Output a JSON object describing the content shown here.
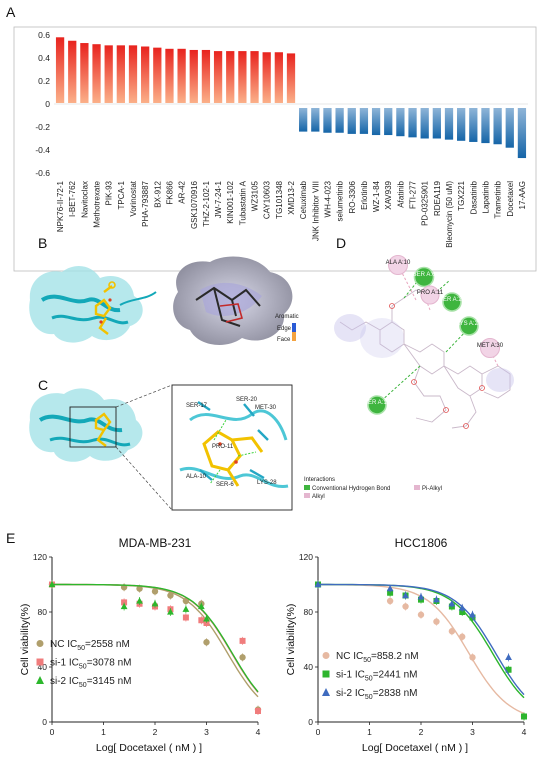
{
  "panels": {
    "A": "A",
    "B": "B",
    "C": "C",
    "D": "D",
    "E": "E"
  },
  "panel_b": {
    "legend_title": "Aromatic",
    "edge_label": "Edge",
    "face_label": "Face"
  },
  "panel_c": {
    "residues": [
      "SER-17",
      "SER-20",
      "MET-30",
      "PRO-11",
      "ALA-10",
      "SER-6",
      "LYS-28"
    ]
  },
  "panel_d": {
    "residues": [
      "ALA A:10",
      "SER A:6",
      "PRO A:11",
      "SER A:20",
      "LYS A:28",
      "MET A:30",
      "SER A:17"
    ],
    "legend_title": "Interactions",
    "legend_items": [
      "Conventional Hydrogen Bond",
      "Pi-Alkyl",
      "Alkyl"
    ]
  },
  "chart_data": [
    {
      "type": "bar",
      "panel": "A",
      "categories": [
        "NPK76-II-72-1",
        "I-BET-762",
        "Navitoclax",
        "Methotrexate",
        "PIK-93",
        "TPCA-1",
        "Vorinostat",
        "PHA-793887",
        "BX-912",
        "FK866",
        "AR-42",
        "GSK1070916",
        "THZ-2-102-1",
        "JW-7-24-1",
        "KIN001-102",
        "Tubastatin A",
        "WZ3105",
        "CAY10603",
        "TG101348",
        "XMD13-2",
        "Cetuximab",
        "JNK Inhibitor VIII",
        "WH-4-023",
        "selumetinib",
        "RO-3306",
        "Erlotinib",
        "WZ-1-84",
        "XAV939",
        "Afatinib",
        "FTI-277",
        "PD-0325901",
        "RDEA119",
        "Bleomycin (50 uM)",
        "TGX221",
        "Dasatinib",
        "Lapatinib",
        "Trametinib",
        "Docetaxel",
        "17-AAG"
      ],
      "values": [
        0.58,
        0.55,
        0.53,
        0.52,
        0.51,
        0.51,
        0.51,
        0.5,
        0.49,
        0.48,
        0.48,
        0.47,
        0.47,
        0.46,
        0.46,
        0.46,
        0.46,
        0.45,
        0.45,
        0.44,
        -0.24,
        -0.24,
        -0.25,
        -0.25,
        -0.26,
        -0.26,
        -0.27,
        -0.27,
        -0.28,
        -0.29,
        -0.3,
        -0.3,
        -0.31,
        -0.32,
        -0.33,
        -0.34,
        -0.35,
        -0.38,
        -0.47
      ],
      "ylim": [
        -0.6,
        0.6
      ],
      "yticks": [
        "0.6",
        "0.4",
        "0.2",
        "0",
        "-0.2",
        "-0.4",
        "-0.6"
      ],
      "colors": {
        "positive_top": "#e8231e",
        "positive_bottom": "#fbb089",
        "negative_top": "#8fb5d8",
        "negative_bottom": "#1565a8"
      }
    },
    {
      "type": "scatter",
      "panel": "E-left",
      "title": "MDA-MB-231",
      "xlabel": "Log[ Docetaxel ( nM ) ]",
      "ylabel": "Cell viability(%)",
      "xlim": [
        0,
        4
      ],
      "ylim": [
        0,
        120
      ],
      "xticks": [
        "0",
        "1",
        "2",
        "3",
        "4"
      ],
      "yticks": [
        "0",
        "40",
        "80",
        "120"
      ],
      "series": [
        {
          "name": "NC IC50=2558 nM",
          "label_prefix": "NC  IC",
          "sub": "50",
          "label_suffix": "=2558 nM",
          "color": "#b09f6c",
          "marker": "circle",
          "x": [
            0,
            1.4,
            1.7,
            2.0,
            2.3,
            2.6,
            2.9,
            3.0,
            3.7,
            4.0
          ],
          "y": [
            100,
            98,
            97,
            95,
            92,
            88,
            86,
            58,
            47,
            9
          ],
          "curve_ic50_log": 3.41
        },
        {
          "name": "si-1 IC50=3078 nM",
          "label_prefix": "si-1  IC",
          "sub": "50",
          "label_suffix": "=3078 nM",
          "color": "#f07c7c",
          "marker": "square",
          "x": [
            0,
            1.4,
            1.7,
            2.0,
            2.3,
            2.6,
            2.9,
            3.0,
            3.7,
            4.0
          ],
          "y": [
            100,
            87,
            86,
            84,
            82,
            76,
            74,
            72,
            59,
            8
          ],
          "curve_ic50_log": 3.49
        },
        {
          "name": "si-2 IC50=3145 nM",
          "label_prefix": "si-2  IC",
          "sub": "50",
          "label_suffix": "=3145 nM",
          "color": "#2cb72c",
          "marker": "triangle",
          "x": [
            0,
            1.4,
            1.7,
            2.0,
            2.3,
            2.6,
            2.9,
            3.0
          ],
          "y": [
            100,
            84,
            88,
            86,
            80,
            82,
            84,
            75
          ],
          "curve_ic50_log": 3.5
        }
      ]
    },
    {
      "type": "scatter",
      "panel": "E-right",
      "title": "HCC1806",
      "xlabel": "Log[ Docetaxel ( nM ) ]",
      "ylabel": "Cell viability(%)",
      "xlim": [
        0,
        4
      ],
      "ylim": [
        0,
        120
      ],
      "xticks": [
        "0",
        "1",
        "2",
        "3",
        "4"
      ],
      "yticks": [
        "0",
        "40",
        "80",
        "120"
      ],
      "series": [
        {
          "name": "NC IC50=858.2 nM",
          "label_prefix": "NC  IC",
          "sub": "50",
          "label_suffix": "=858.2 nM",
          "color": "#e6b9a2",
          "marker": "circle",
          "x": [
            0,
            1.4,
            1.7,
            2.0,
            2.3,
            2.6,
            2.8,
            3.0,
            4.0
          ],
          "y": [
            100,
            88,
            84,
            78,
            73,
            66,
            62,
            47,
            4
          ],
          "curve_ic50_log": 2.93
        },
        {
          "name": "si-1 IC50=2441 nM",
          "label_prefix": "si-1  IC",
          "sub": "50",
          "label_suffix": "=2441 nM",
          "color": "#2db52d",
          "marker": "square",
          "x": [
            0,
            1.4,
            1.7,
            2.0,
            2.3,
            2.6,
            2.8,
            3.0,
            3.7,
            4.0
          ],
          "y": [
            100,
            94,
            92,
            89,
            88,
            84,
            80,
            76,
            38,
            4
          ],
          "curve_ic50_log": 3.39
        },
        {
          "name": "si-2 IC50=2838 nM",
          "label_prefix": "si-2  IC",
          "sub": "50",
          "label_suffix": "=2838 nM",
          "color": "#3f6bbf",
          "marker": "triangle",
          "x": [
            0,
            1.4,
            1.7,
            2.0,
            2.3,
            2.6,
            2.8,
            3.0,
            3.7
          ],
          "y": [
            100,
            97,
            92,
            91,
            89,
            86,
            83,
            78,
            47
          ],
          "curve_ic50_log": 3.45
        }
      ]
    }
  ]
}
